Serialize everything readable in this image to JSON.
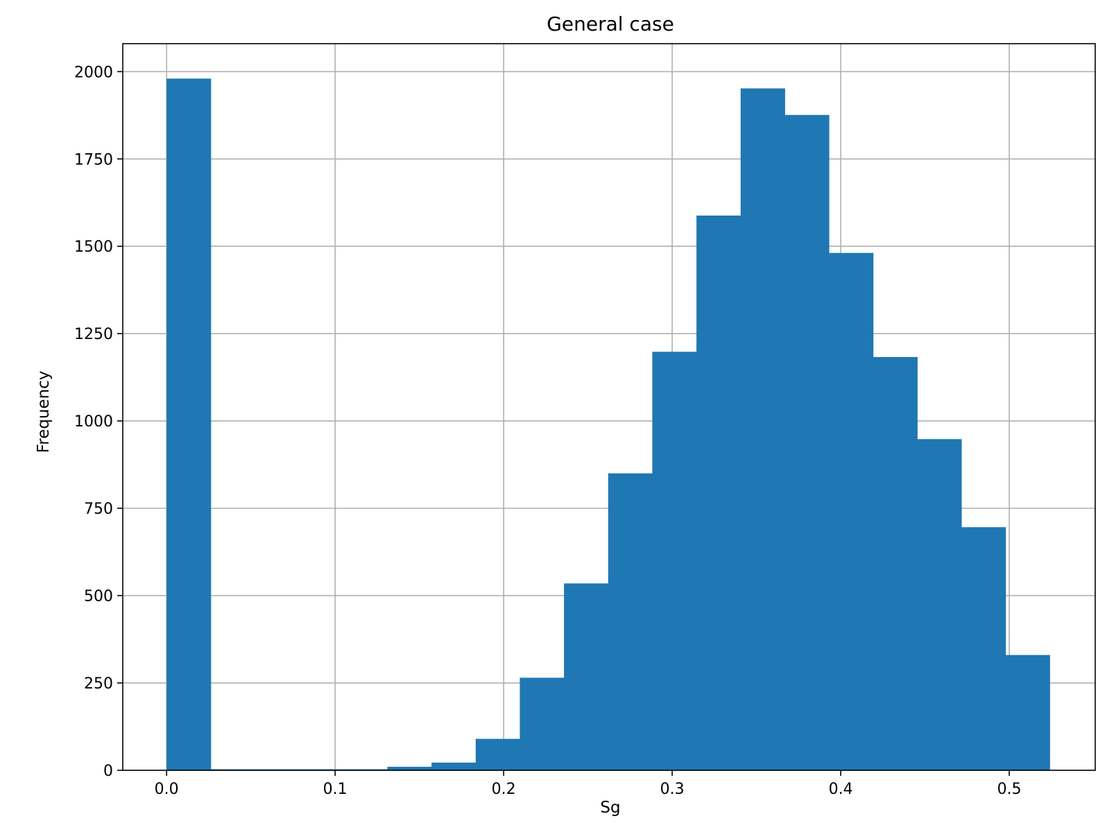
{
  "chart_data": {
    "type": "bar",
    "title": "General case",
    "xlabel": "Sg",
    "ylabel": "Frequency",
    "xlim": [
      -0.026,
      0.551
    ],
    "ylim": [
      0,
      2080
    ],
    "grid": true,
    "bar_color": "#1f77b4",
    "x_ticks": [
      {
        "value": 0.0,
        "label": "0.0"
      },
      {
        "value": 0.1,
        "label": "0.1"
      },
      {
        "value": 0.2,
        "label": "0.2"
      },
      {
        "value": 0.3,
        "label": "0.3"
      },
      {
        "value": 0.4,
        "label": "0.4"
      },
      {
        "value": 0.5,
        "label": "0.5"
      }
    ],
    "y_ticks": [
      {
        "value": 0,
        "label": "0"
      },
      {
        "value": 250,
        "label": "250"
      },
      {
        "value": 500,
        "label": "500"
      },
      {
        "value": 750,
        "label": "750"
      },
      {
        "value": 1000,
        "label": "1000"
      },
      {
        "value": 1250,
        "label": "1250"
      },
      {
        "value": 1500,
        "label": "1500"
      },
      {
        "value": 1750,
        "label": "1750"
      },
      {
        "value": 2000,
        "label": "2000"
      }
    ],
    "bin_edges": [
      0.0,
      0.0262,
      0.0524,
      0.0786,
      0.1048,
      0.131,
      0.1572,
      0.1834,
      0.2096,
      0.2358,
      0.262,
      0.2882,
      0.3144,
      0.3406,
      0.3668,
      0.393,
      0.4192,
      0.4454,
      0.4716,
      0.4978,
      0.524
    ],
    "values": [
      1980,
      3,
      3,
      3,
      3,
      10,
      22,
      90,
      265,
      535,
      850,
      1198,
      1588,
      1952,
      1876,
      1481,
      1183,
      948,
      696,
      330
    ]
  }
}
